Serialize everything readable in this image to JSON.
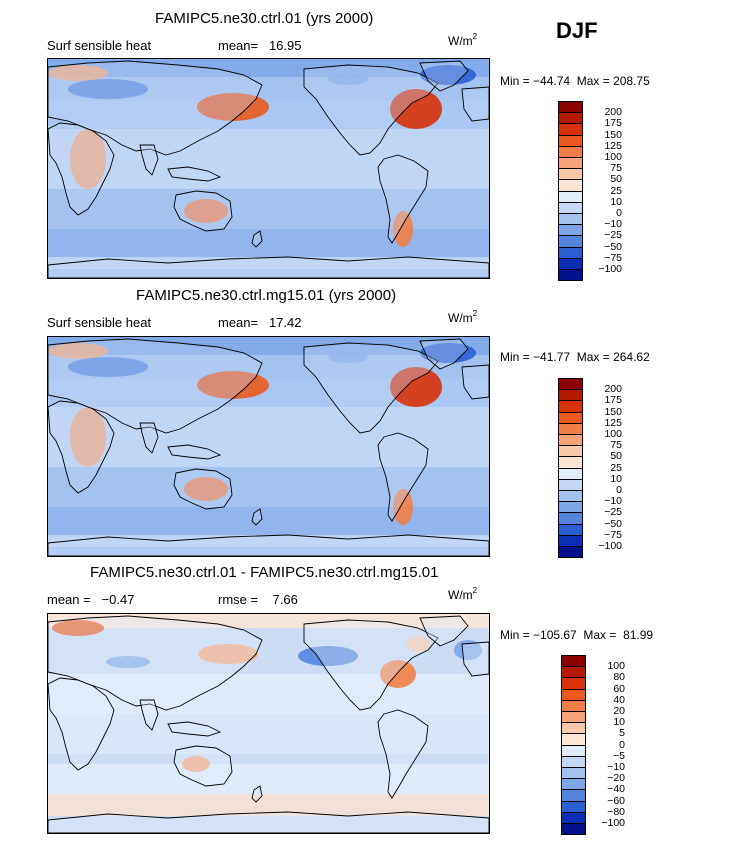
{
  "season": "DJF",
  "panels": [
    {
      "title": "FAMIPC5.ne30.ctrl.01 (yrs 2000)",
      "left_label": "Surf sensible heat",
      "stat_text": "mean=   16.95",
      "units_base": "W/m",
      "units_exp": "2",
      "minmax": "Min = −44.74  Max = 208.75"
    },
    {
      "title": "FAMIPC5.ne30.ctrl.mg15.01 (yrs 2000)",
      "left_label": "Surf sensible heat",
      "stat_text": "mean=   17.42",
      "units_base": "W/m",
      "units_exp": "2",
      "minmax": "Min = −41.77  Max = 264.62"
    },
    {
      "title": "FAMIPC5.ne30.ctrl.01 - FAMIPC5.ne30.ctrl.mg15.01",
      "left_label": "mean =   −0.47",
      "stat_text": "rmse =    7.66",
      "units_base": "W/m",
      "units_exp": "2",
      "minmax": "Min = −105.67  Max =  81.99"
    }
  ],
  "chart_data": [
    {
      "type": "heatmap",
      "title": "FAMIPC5.ne30.ctrl.01 (yrs 2000)",
      "variable": "Surf sensible heat",
      "units": "W/m2",
      "mean": 16.95,
      "min": -44.74,
      "max": 208.75,
      "colorbar_levels": [
        "200",
        "175",
        "150",
        "125",
        "100",
        "75",
        "50",
        "25",
        "10",
        "0",
        "−10",
        "−25",
        "−50",
        "−75",
        "−100"
      ],
      "colorbar_colors": [
        "#8b0000",
        "#b31a00",
        "#d8320a",
        "#ea5a1f",
        "#f27f47",
        "#f6a477",
        "#f9c9a9",
        "#fbe6d6",
        "#e2edfb",
        "#c4d8f6",
        "#a2c1ef",
        "#7da6e8",
        "#5385de",
        "#2a5fd1",
        "#0a2fb5",
        "#00108a"
      ]
    },
    {
      "type": "heatmap",
      "title": "FAMIPC5.ne30.ctrl.mg15.01 (yrs 2000)",
      "variable": "Surf sensible heat",
      "units": "W/m2",
      "mean": 17.42,
      "min": -41.77,
      "max": 264.62,
      "colorbar_levels": [
        "200",
        "175",
        "150",
        "125",
        "100",
        "75",
        "50",
        "25",
        "10",
        "0",
        "−10",
        "−25",
        "−50",
        "−75",
        "−100"
      ],
      "colorbar_colors": [
        "#8b0000",
        "#b31a00",
        "#d8320a",
        "#ea5a1f",
        "#f27f47",
        "#f6a477",
        "#f9c9a9",
        "#fbe6d6",
        "#e2edfb",
        "#c4d8f6",
        "#a2c1ef",
        "#7da6e8",
        "#5385de",
        "#2a5fd1",
        "#0a2fb5",
        "#00108a"
      ]
    },
    {
      "type": "heatmap",
      "title": "FAMIPC5.ne30.ctrl.01 - FAMIPC5.ne30.ctrl.mg15.01",
      "units": "W/m2",
      "mean": -0.47,
      "rmse": 7.66,
      "min": -105.67,
      "max": 81.99,
      "colorbar_levels": [
        "100",
        "80",
        "60",
        "40",
        "20",
        "10",
        "5",
        "0",
        "−5",
        "−10",
        "−20",
        "−40",
        "−60",
        "−80",
        "−100"
      ],
      "colorbar_colors": [
        "#8b0000",
        "#b31a00",
        "#d8320a",
        "#ea5a1f",
        "#f27f47",
        "#f6a477",
        "#f9c9a9",
        "#fbe6d6",
        "#e2edfb",
        "#c4d8f6",
        "#a2c1ef",
        "#7da6e8",
        "#5385de",
        "#2a5fd1",
        "#0a2fb5",
        "#00108a"
      ]
    }
  ]
}
